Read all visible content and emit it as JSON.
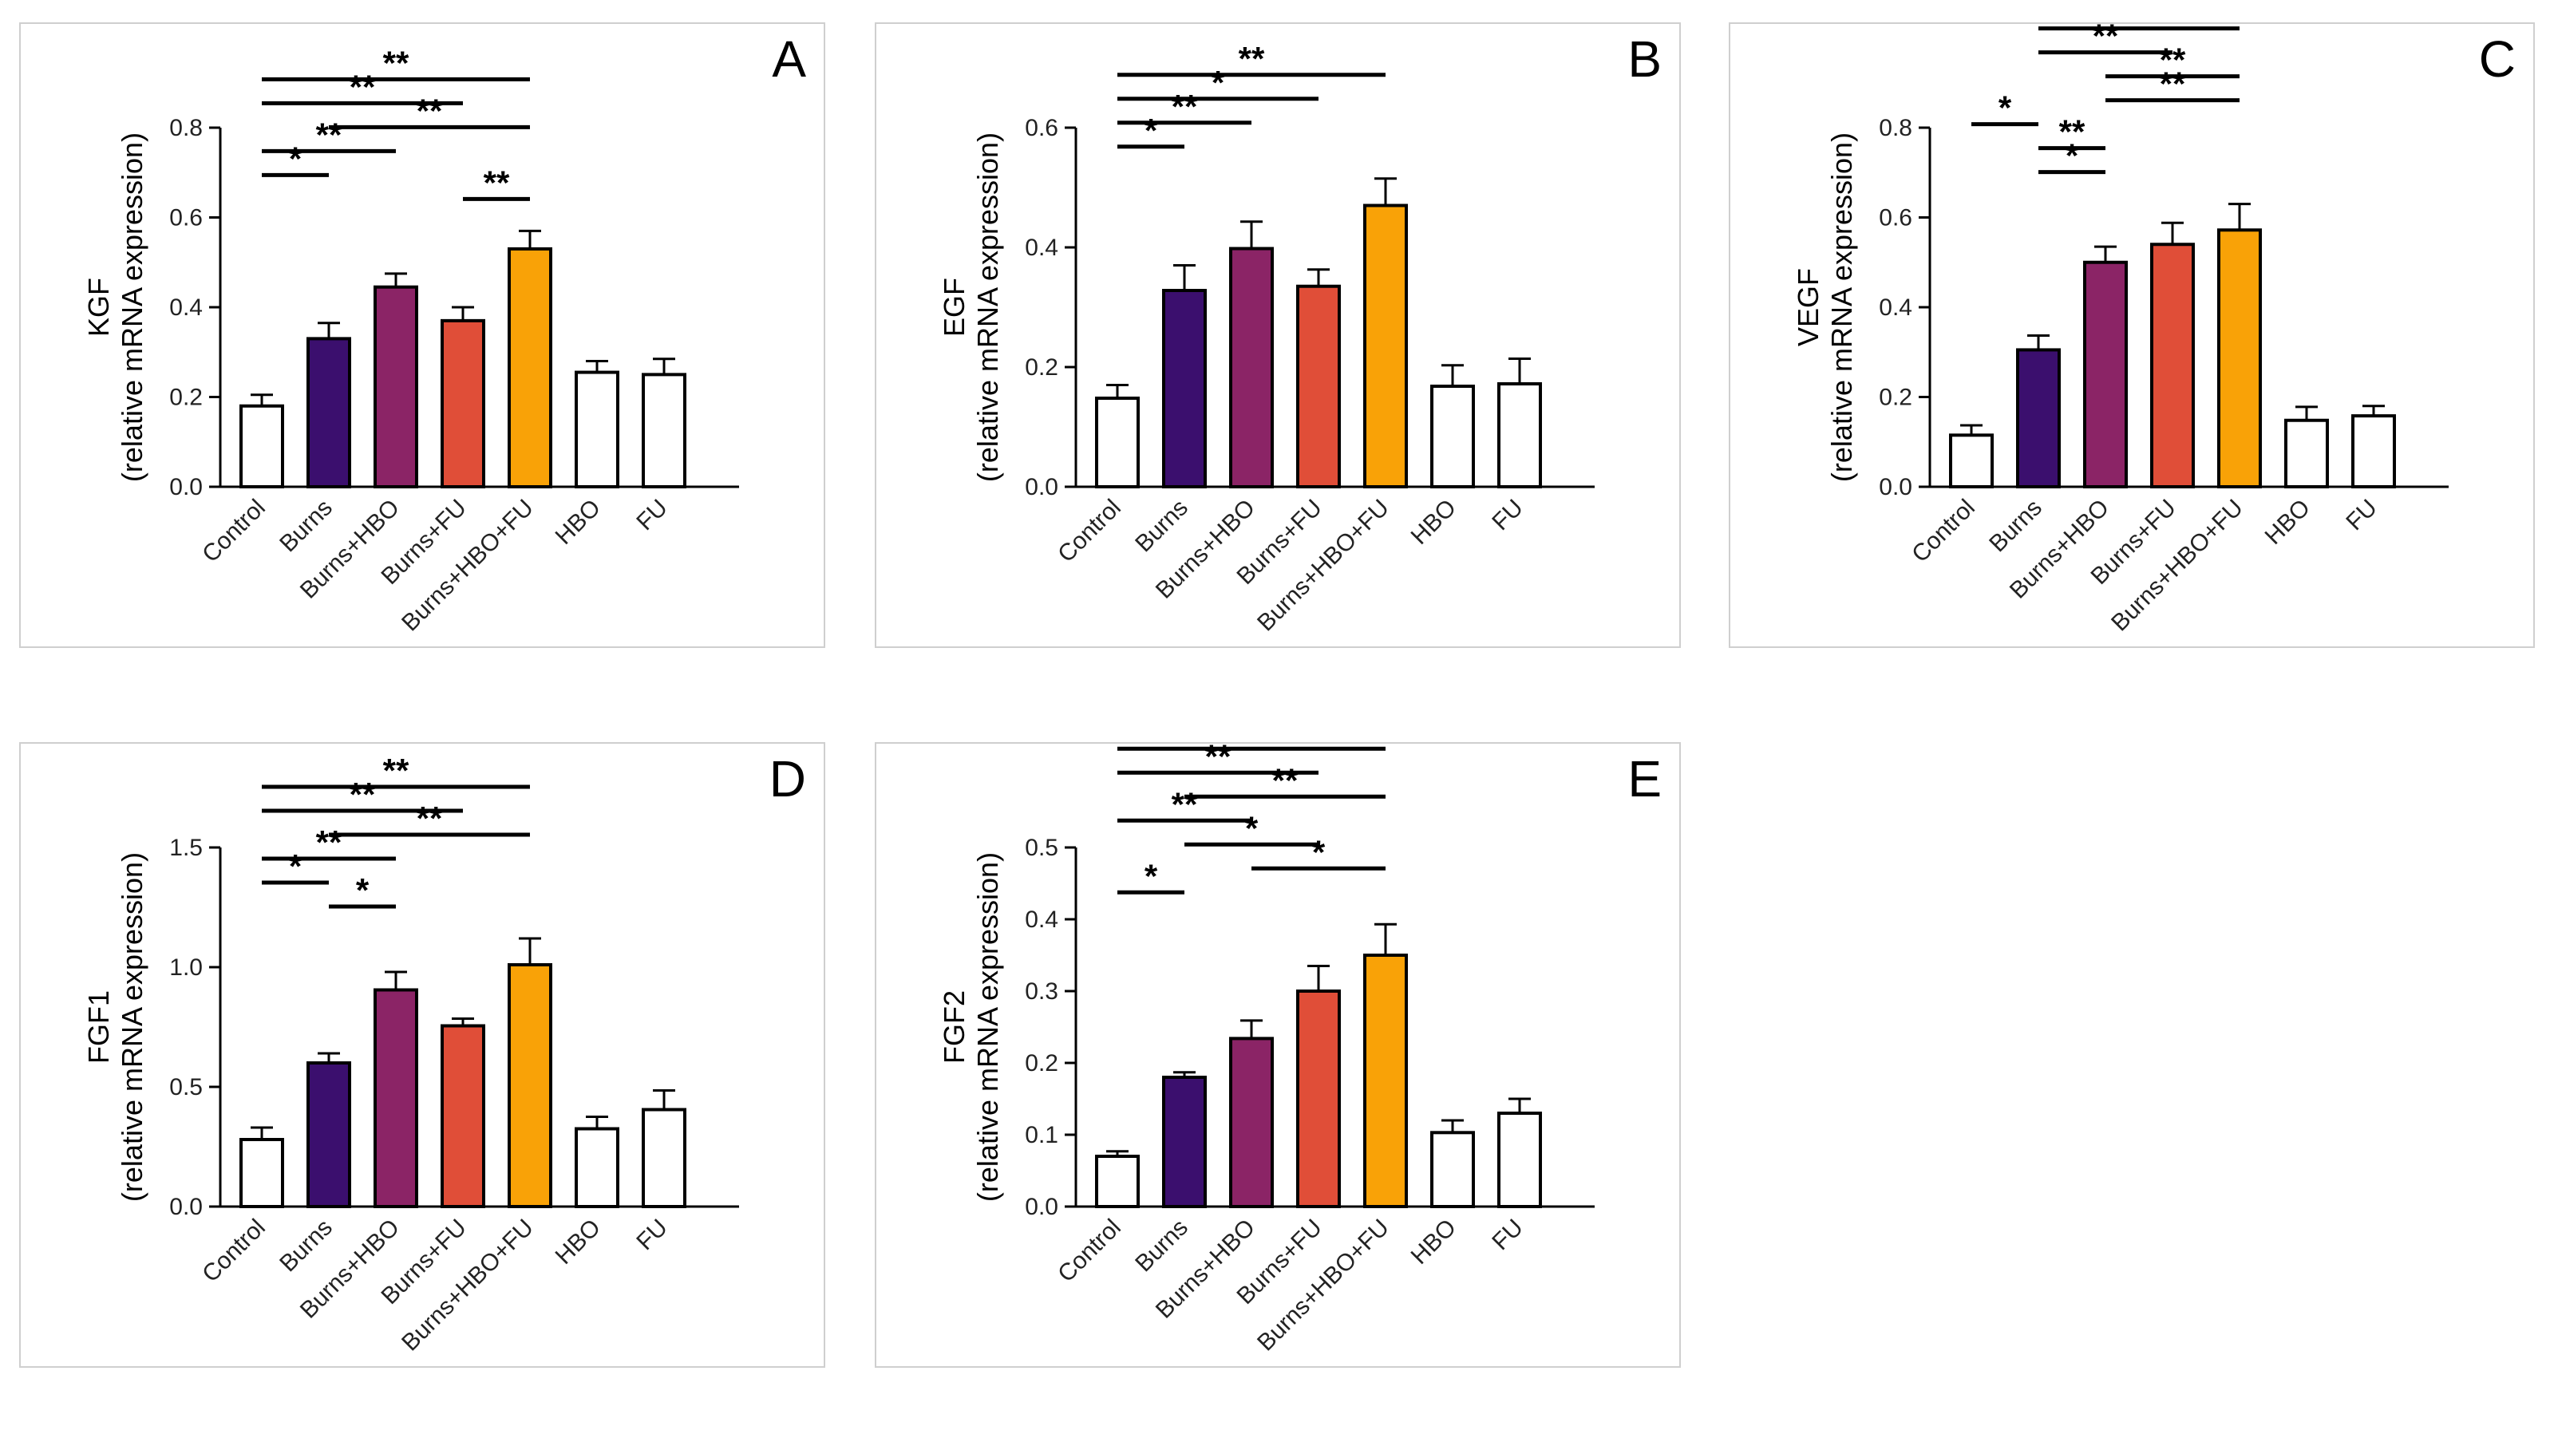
{
  "chart_data": [
    {
      "id": "A",
      "type": "bar",
      "letter": "A",
      "ylabel_top": "KGF",
      "ylabel_bottom": "(relative mRNA expression)",
      "categories": [
        "Control",
        "Burns",
        "Burns+HBO",
        "Burns+FU",
        "Burns+HBO+FU",
        "HBO",
        "FU"
      ],
      "values": [
        0.18,
        0.33,
        0.445,
        0.37,
        0.53,
        0.255,
        0.25
      ],
      "errors": [
        0.025,
        0.035,
        0.03,
        0.03,
        0.04,
        0.025,
        0.035
      ],
      "ylim": [
        0,
        0.8
      ],
      "yticks": [
        "0.0",
        "0.2",
        "0.4",
        "0.6",
        "0.8"
      ],
      "significance": [
        {
          "from": 0,
          "to": 1,
          "label": "*"
        },
        {
          "from": 0,
          "to": 2,
          "label": "**"
        },
        {
          "from": 0,
          "to": 3,
          "label": "**"
        },
        {
          "from": 3,
          "to": 4,
          "label": "**"
        },
        {
          "from": 0,
          "to": 4,
          "label": "**"
        },
        {
          "from": 1,
          "to": 4,
          "label": "**"
        }
      ]
    },
    {
      "id": "B",
      "type": "bar",
      "letter": "B",
      "ylabel_top": "EGF",
      "ylabel_bottom": "(relative mRNA expression)",
      "categories": [
        "Control",
        "Burns",
        "Burns+HBO",
        "Burns+FU",
        "Burns+HBO+FU",
        "HBO",
        "FU"
      ],
      "values": [
        0.148,
        0.328,
        0.398,
        0.335,
        0.47,
        0.168,
        0.172
      ],
      "errors": [
        0.022,
        0.042,
        0.045,
        0.028,
        0.045,
        0.035,
        0.042
      ],
      "ylim": [
        0,
        0.6
      ],
      "yticks": [
        "0.0",
        "0.2",
        "0.4",
        "0.6"
      ],
      "significance": [
        {
          "from": 0,
          "to": 1,
          "label": "*"
        },
        {
          "from": 0,
          "to": 2,
          "label": "**"
        },
        {
          "from": 0,
          "to": 3,
          "label": "*"
        },
        {
          "from": 0,
          "to": 4,
          "label": "**"
        }
      ]
    },
    {
      "id": "C",
      "type": "bar",
      "letter": "C",
      "ylabel_top": "VEGF",
      "ylabel_bottom": "(relative mRNA expression)",
      "categories": [
        "Control",
        "Burns",
        "Burns+HBO",
        "Burns+FU",
        "Burns+HBO+FU",
        "HBO",
        "FU"
      ],
      "values": [
        0.115,
        0.305,
        0.5,
        0.54,
        0.572,
        0.148,
        0.158
      ],
      "errors": [
        0.022,
        0.032,
        0.035,
        0.048,
        0.058,
        0.03,
        0.022
      ],
      "ylim": [
        0,
        0.8
      ],
      "yticks": [
        "0.0",
        "0.2",
        "0.4",
        "0.6",
        "0.8"
      ],
      "significance": [
        {
          "from": 0,
          "to": 1,
          "label": "*"
        },
        {
          "from": 1,
          "to": 2,
          "label": "*"
        },
        {
          "from": 1,
          "to": 2,
          "label": "**"
        },
        {
          "from": 1,
          "to": 3,
          "label": "**"
        },
        {
          "from": 1,
          "to": 4,
          "label": "**"
        },
        {
          "from": 2,
          "to": 4,
          "label": "**"
        },
        {
          "from": 2,
          "to": 4,
          "label": "**"
        }
      ]
    },
    {
      "id": "D",
      "type": "bar",
      "letter": "D",
      "ylabel_top": "FGF1",
      "ylabel_bottom": "(relative mRNA expression)",
      "categories": [
        "Control",
        "Burns",
        "Burns+HBO",
        "Burns+FU",
        "Burns+HBO+FU",
        "HBO",
        "FU"
      ],
      "values": [
        0.28,
        0.6,
        0.905,
        0.755,
        1.01,
        0.325,
        0.405
      ],
      "errors": [
        0.05,
        0.04,
        0.075,
        0.03,
        0.11,
        0.05,
        0.08
      ],
      "ylim": [
        0,
        1.5
      ],
      "yticks": [
        "0.0",
        "0.5",
        "1.0",
        "1.5"
      ],
      "significance": [
        {
          "from": 0,
          "to": 1,
          "label": "*"
        },
        {
          "from": 1,
          "to": 2,
          "label": "*"
        },
        {
          "from": 0,
          "to": 2,
          "label": "**"
        },
        {
          "from": 0,
          "to": 3,
          "label": "**"
        },
        {
          "from": 0,
          "to": 4,
          "label": "**"
        },
        {
          "from": 1,
          "to": 4,
          "label": "**"
        }
      ]
    },
    {
      "id": "E",
      "type": "bar",
      "letter": "E",
      "ylabel_top": "FGF2",
      "ylabel_bottom": "(relative mRNA expression)",
      "categories": [
        "Control",
        "Burns",
        "Burns+HBO",
        "Burns+FU",
        "Burns+HBO+FU",
        "HBO",
        "FU"
      ],
      "values": [
        0.07,
        0.18,
        0.234,
        0.3,
        0.35,
        0.103,
        0.13
      ],
      "errors": [
        0.007,
        0.007,
        0.025,
        0.035,
        0.043,
        0.017,
        0.02
      ],
      "ylim": [
        0,
        0.5
      ],
      "yticks": [
        "0.0",
        "0.1",
        "0.2",
        "0.3",
        "0.4",
        "0.5"
      ],
      "significance": [
        {
          "from": 0,
          "to": 1,
          "label": "*"
        },
        {
          "from": 0,
          "to": 2,
          "label": "**"
        },
        {
          "from": 0,
          "to": 3,
          "label": "**"
        },
        {
          "from": 0,
          "to": 4,
          "label": "**"
        },
        {
          "from": 2,
          "to": 4,
          "label": "*"
        },
        {
          "from": 1,
          "to": 3,
          "label": "*"
        },
        {
          "from": 1,
          "to": 4,
          "label": "**"
        }
      ]
    }
  ],
  "bar_colors": [
    "#ffffff",
    "#3b0f6e",
    "#8b2466",
    "#e04e38",
    "#f9a207",
    "#ffffff",
    "#ffffff"
  ]
}
